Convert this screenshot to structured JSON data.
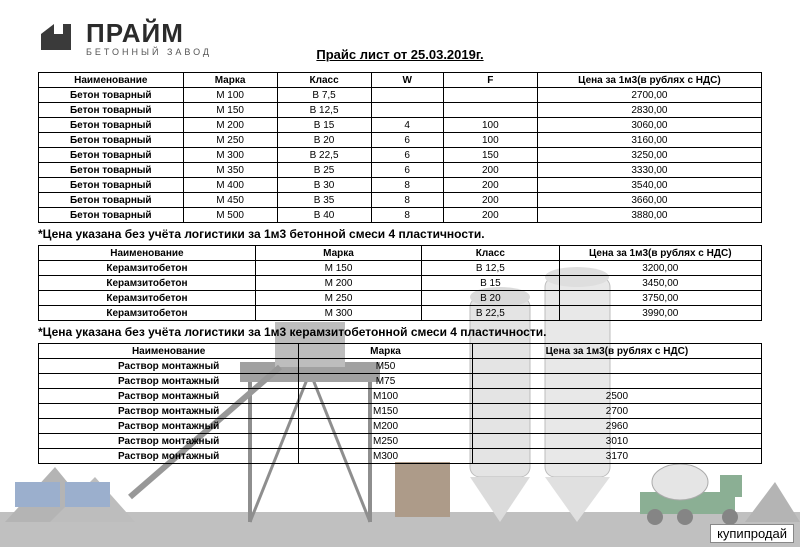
{
  "logo": {
    "brand": "ПРАЙМ",
    "subbrand": "БЕТОННЫЙ ЗАВОД",
    "icon_color": "#3a3a3a"
  },
  "title": "Прайс лист от 25.03.2019г.",
  "colors": {
    "border": "#000000",
    "text": "#000000",
    "background": "#ffffff"
  },
  "table1": {
    "columns": [
      "Наименование",
      "Марка",
      "Класс",
      "W",
      "F",
      "Цена за 1м3(в рублях с НДС)"
    ],
    "rows": [
      [
        "Бетон товарный",
        "М 100",
        "В 7,5",
        "",
        "",
        "2700,00"
      ],
      [
        "Бетон товарный",
        "М 150",
        "В 12,5",
        "",
        "",
        "2830,00"
      ],
      [
        "Бетон товарный",
        "М 200",
        "В 15",
        "4",
        "100",
        "3060,00"
      ],
      [
        "Бетон товарный",
        "М 250",
        "В 20",
        "6",
        "100",
        "3160,00"
      ],
      [
        "Бетон товарный",
        "М 300",
        "В 22,5",
        "6",
        "150",
        "3250,00"
      ],
      [
        "Бетон товарный",
        "М 350",
        "В 25",
        "6",
        "200",
        "3330,00"
      ],
      [
        "Бетон товарный",
        "М 400",
        "В 30",
        "8",
        "200",
        "3540,00"
      ],
      [
        "Бетон товарный",
        "М 450",
        "В 35",
        "8",
        "200",
        "3660,00"
      ],
      [
        "Бетон товарный",
        "М 500",
        "В 40",
        "8",
        "200",
        "3880,00"
      ]
    ],
    "col_widths": [
      "20%",
      "13%",
      "13%",
      "10%",
      "13%",
      "31%"
    ]
  },
  "note1": "*Цена указана без учёта логистики за 1м3 бетонной смеси 4 пластичности.",
  "table2": {
    "columns": [
      "Наименование",
      "Марка",
      "Класс",
      "Цена за 1м3(в рублях с НДС)"
    ],
    "rows": [
      [
        "Керамзитобетон",
        "М 150",
        "В 12,5",
        "3200,00"
      ],
      [
        "Керамзитобетон",
        "М 200",
        "В 15",
        "3450,00"
      ],
      [
        "Керамзитобетон",
        "М 250",
        "В 20",
        "3750,00"
      ],
      [
        "Керамзитобетон",
        "М 300",
        "В 22,5",
        "3990,00"
      ]
    ],
    "col_widths": [
      "30%",
      "23%",
      "19%",
      "28%"
    ]
  },
  "note2": "*Цена указана без учёта логистики за 1м3 керамзитобетонной смеси 4 пластичности.",
  "table3": {
    "columns": [
      "Наименование",
      "Марка",
      "Цена за 1м3(в рублях с НДС)"
    ],
    "rows": [
      [
        "Раствор монтажный",
        "М50",
        ""
      ],
      [
        "Раствор монтажный",
        "М75",
        ""
      ],
      [
        "Раствор монтажный",
        "М100",
        "2500"
      ],
      [
        "Раствор монтажный",
        "М150",
        "2700"
      ],
      [
        "Раствор монтажный",
        "М200",
        "2960"
      ],
      [
        "Раствор монтажный",
        "М250",
        "3010"
      ],
      [
        "Раствор монтажный",
        "М300",
        "3170"
      ]
    ],
    "col_widths": [
      "36%",
      "24%",
      "40%"
    ]
  },
  "watermark": "купипродай"
}
